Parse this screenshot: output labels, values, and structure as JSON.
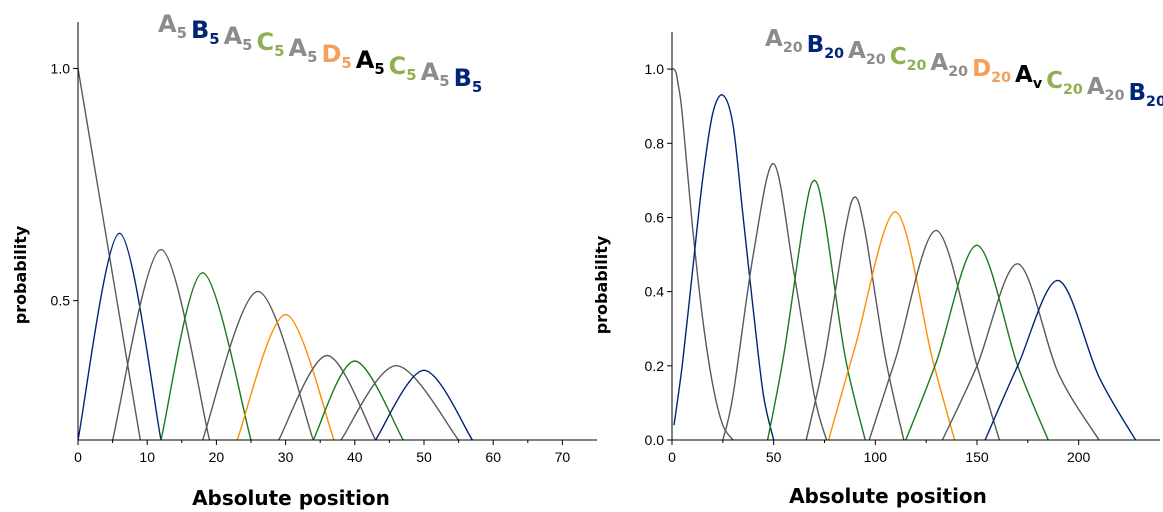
{
  "colors": {
    "A": "#595959",
    "A_label": "#8c8c8c",
    "B": "#002577",
    "C": "#1a7a1a",
    "C_label": "#8fb050",
    "D": "#ff8c00",
    "D_label": "#f5a05a",
    "V": "#000000"
  },
  "chart_data": [
    {
      "type": "line",
      "title_segments": [
        {
          "base": "A",
          "sub": "5",
          "color": "#8c8c8c"
        },
        {
          "base": "B",
          "sub": "5",
          "color": "#002577"
        },
        {
          "base": "A",
          "sub": "5",
          "color": "#8c8c8c"
        },
        {
          "base": "C",
          "sub": "5",
          "color": "#8fb050"
        },
        {
          "base": "A",
          "sub": "5",
          "color": "#8c8c8c"
        },
        {
          "base": "D",
          "sub": "5",
          "color": "#f5a05a"
        },
        {
          "base": "A",
          "sub": "5",
          "color": "#000000"
        },
        {
          "base": "C",
          "sub": "5",
          "color": "#8fb050"
        },
        {
          "base": "A",
          "sub": "5",
          "color": "#8c8c8c"
        },
        {
          "base": "B",
          "sub": "5",
          "color": "#002577"
        }
      ],
      "xlabel": "Absolute position",
      "ylabel": "probability",
      "xlim": [
        0,
        75
      ],
      "ylim": [
        0.2,
        1.1
      ],
      "xticks": [
        0,
        10,
        20,
        30,
        40,
        50,
        60,
        70
      ],
      "xtick_labels": [
        "0",
        "10",
        "20",
        "30",
        "40",
        "50",
        "60",
        "70"
      ],
      "yticks": [
        0.5,
        1.0
      ],
      "ytick_labels": [
        "0.5",
        "1.0"
      ],
      "grid": false,
      "series": [
        {
          "color_key": "A",
          "x": [
            0,
            9
          ],
          "y": [
            1.0,
            0.2
          ]
        },
        {
          "color_key": "B",
          "x": [
            0,
            6,
            12
          ],
          "y": [
            0.2,
            0.645,
            0.2
          ]
        },
        {
          "color_key": "A",
          "x": [
            5,
            12,
            19
          ],
          "y": [
            0.2,
            0.61,
            0.2
          ]
        },
        {
          "color_key": "C",
          "x": [
            12,
            18,
            25
          ],
          "y": [
            0.2,
            0.56,
            0.2
          ]
        },
        {
          "color_key": "A",
          "x": [
            18,
            26,
            34
          ],
          "y": [
            0.2,
            0.52,
            0.2
          ]
        },
        {
          "color_key": "D",
          "x": [
            23,
            30,
            37
          ],
          "y": [
            0.2,
            0.47,
            0.2
          ]
        },
        {
          "color_key": "A",
          "x": [
            29,
            36,
            43
          ],
          "y": [
            0.2,
            0.382,
            0.2
          ]
        },
        {
          "color_key": "C",
          "x": [
            34,
            40,
            47
          ],
          "y": [
            0.2,
            0.37,
            0.2
          ]
        },
        {
          "color_key": "A",
          "x": [
            38,
            46,
            55
          ],
          "y": [
            0.2,
            0.36,
            0.2
          ]
        },
        {
          "color_key": "B",
          "x": [
            43,
            50,
            57
          ],
          "y": [
            0.2,
            0.35,
            0.2
          ]
        }
      ]
    },
    {
      "type": "line",
      "title_segments": [
        {
          "base": "A",
          "sub": "20",
          "color": "#8c8c8c"
        },
        {
          "base": "B",
          "sub": "20",
          "color": "#002577"
        },
        {
          "base": "A",
          "sub": "20",
          "color": "#8c8c8c"
        },
        {
          "base": "C",
          "sub": "20",
          "color": "#8fb050"
        },
        {
          "base": "A",
          "sub": "20",
          "color": "#8c8c8c"
        },
        {
          "base": "D",
          "sub": "20",
          "color": "#f5a05a"
        },
        {
          "base": "A",
          "sub": "v",
          "color": "#000000"
        },
        {
          "base": "C",
          "sub": "20",
          "color": "#8fb050"
        },
        {
          "base": "A",
          "sub": "20",
          "color": "#8c8c8c"
        },
        {
          "base": "B",
          "sub": "20",
          "color": "#002577"
        }
      ],
      "xlabel": "Absolute position",
      "ylabel": "probability",
      "xlim": [
        0,
        240
      ],
      "ylim": [
        0,
        1.1
      ],
      "xticks": [
        0,
        50,
        100,
        150,
        200
      ],
      "xtick_labels": [
        "0",
        "50",
        "100",
        "150",
        "200"
      ],
      "yticks": [
        0,
        0.2,
        0.4,
        0.6,
        0.8,
        1.0
      ],
      "ytick_labels": [
        "0.0",
        "0.2",
        "0.4",
        "0.6",
        "0.8",
        "1.0"
      ],
      "grid": false,
      "series": [
        {
          "color_key": "A",
          "x": [
            0,
            1,
            2,
            3,
            5,
            10,
            15,
            20,
            25,
            30
          ],
          "y": [
            1.0,
            1.0,
            0.99,
            0.96,
            0.88,
            0.58,
            0.33,
            0.15,
            0.04,
            0.0
          ]
        },
        {
          "color_key": "B",
          "x": [
            1,
            5,
            10,
            15,
            20,
            25,
            30,
            35,
            40,
            45,
            50
          ],
          "y": [
            0.04,
            0.2,
            0.45,
            0.7,
            0.88,
            0.93,
            0.85,
            0.6,
            0.35,
            0.12,
            0.0
          ]
        },
        {
          "color_key": "A",
          "x": [
            25,
            30,
            40,
            50,
            60,
            70,
            76
          ],
          "y": [
            0.0,
            0.12,
            0.5,
            0.745,
            0.45,
            0.12,
            0.0
          ]
        },
        {
          "color_key": "C",
          "x": [
            47,
            55,
            65,
            70,
            75,
            85,
            95
          ],
          "y": [
            0.0,
            0.23,
            0.6,
            0.7,
            0.6,
            0.23,
            0.0
          ]
        },
        {
          "color_key": "A",
          "x": [
            66,
            75,
            85,
            90,
            95,
            105,
            114
          ],
          "y": [
            0.0,
            0.22,
            0.56,
            0.655,
            0.56,
            0.22,
            0.0
          ]
        },
        {
          "color_key": "D",
          "x": [
            77,
            90,
            110,
            128,
            139
          ],
          "y": [
            0.0,
            0.25,
            0.615,
            0.22,
            0.0
          ]
        },
        {
          "color_key": "A",
          "x": [
            97,
            110,
            130,
            150,
            161
          ],
          "y": [
            0.0,
            0.22,
            0.565,
            0.2,
            0.0
          ]
        },
        {
          "color_key": "C",
          "x": [
            115,
            130,
            150,
            170,
            185
          ],
          "y": [
            0.0,
            0.21,
            0.525,
            0.2,
            0.0
          ]
        },
        {
          "color_key": "A",
          "x": [
            133,
            150,
            170,
            190,
            210
          ],
          "y": [
            0.0,
            0.2,
            0.475,
            0.18,
            0.0
          ]
        },
        {
          "color_key": "B",
          "x": [
            154,
            170,
            190,
            210,
            228
          ],
          "y": [
            0.0,
            0.2,
            0.43,
            0.17,
            0.0
          ]
        }
      ]
    }
  ]
}
